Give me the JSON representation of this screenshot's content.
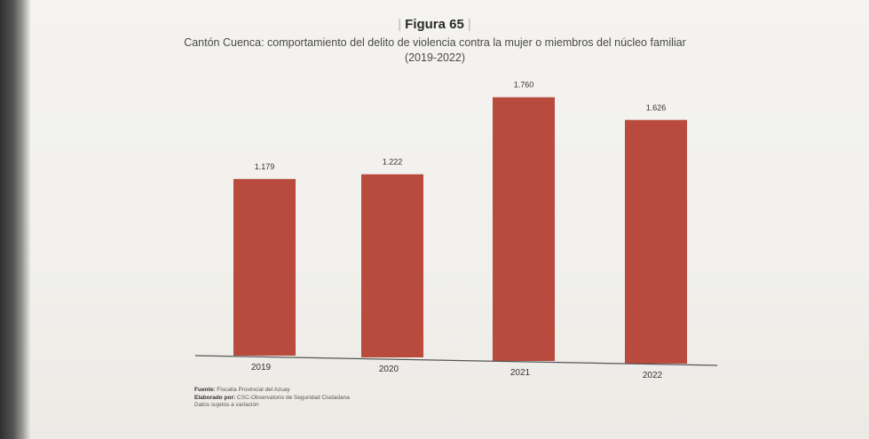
{
  "figure": {
    "label": "Figura 65",
    "subtitle_line1": "Cantón Cuenca: comportamiento del delito de violencia contra la mujer o miembros del núcleo familiar",
    "subtitle_line2": "(2019-2022)"
  },
  "chart_data": {
    "type": "bar",
    "title": "Figura 65",
    "subtitle": "Cantón Cuenca: comportamiento del delito de violencia contra la mujer o miembros del núcleo familiar (2019-2022)",
    "categories": [
      "2019",
      "2020",
      "2021",
      "2022"
    ],
    "values": [
      1179,
      1222,
      1760,
      1626
    ],
    "data_labels": [
      "1.179",
      "1.222",
      "1.760",
      "1.626"
    ],
    "xlabel": "",
    "ylabel": "",
    "ylim": [
      0,
      1900
    ],
    "grid": false,
    "legend": "none",
    "bar_color": "#b84a3e"
  },
  "footer": {
    "source_label": "Fuente:",
    "source_text": "Fiscalía Provincial del Azuay",
    "author_label": "Elaborado por:",
    "author_text": "CSC-Observatorio de Seguridad Ciudadana",
    "note": "Datos sujetos a variación"
  }
}
